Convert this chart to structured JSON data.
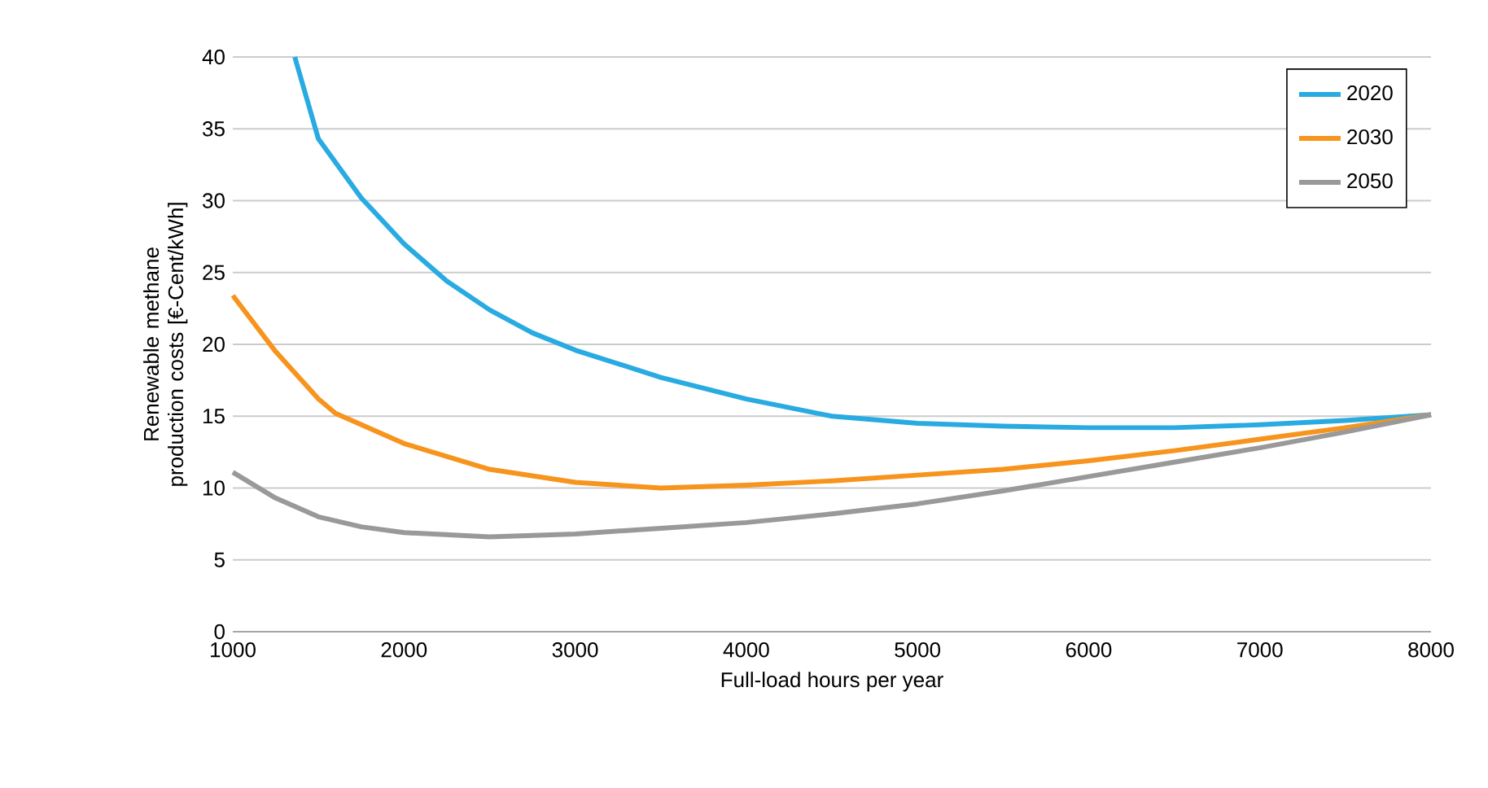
{
  "chart_data": {
    "type": "line",
    "xlabel": "Full-load hours per year",
    "ylabel": "Renewable methane production costs [€-Cent/kWh]",
    "xlim": [
      1000,
      8000
    ],
    "xticks": [
      1000,
      2000,
      3000,
      4000,
      5000,
      6000,
      7000,
      8000
    ],
    "ylim": [
      0,
      40
    ],
    "yticks": [
      0,
      5,
      10,
      15,
      20,
      25,
      30,
      35,
      40
    ],
    "grid": "y",
    "legend": "top right",
    "marker": "none",
    "line_style": "solid",
    "series": [
      {
        "name": "2020",
        "color": "#29abe2",
        "x": [
          1362,
          1500,
          1750,
          2000,
          2250,
          2500,
          2750,
          3000,
          3500,
          4000,
          4500,
          5000,
          5500,
          6000,
          6500,
          7000,
          7500,
          8000
        ],
        "values": [
          40,
          34.3,
          30.2,
          27,
          24.4,
          22.4,
          20.8,
          19.6,
          17.7,
          16.2,
          15.0,
          14.5,
          14.3,
          14.2,
          14.2,
          14.4,
          14.7,
          15.1
        ]
      },
      {
        "name": "2030",
        "color": "#f7941d",
        "x": [
          1000,
          1250,
          1500,
          1600,
          2000,
          2500,
          3000,
          3500,
          4000,
          4500,
          5000,
          5500,
          6000,
          6500,
          7000,
          7500,
          8000
        ],
        "values": [
          23.4,
          19.5,
          16.2,
          15.2,
          13.1,
          11.3,
          10.4,
          10.0,
          10.2,
          10.5,
          10.9,
          11.3,
          11.9,
          12.6,
          13.4,
          14.2,
          15.1
        ]
      },
      {
        "name": "2050",
        "color": "#999999",
        "x": [
          1000,
          1250,
          1500,
          1750,
          2000,
          2500,
          3000,
          3500,
          4000,
          4500,
          5000,
          5500,
          6000,
          6500,
          7000,
          7500,
          8000
        ],
        "values": [
          11.1,
          9.3,
          8.0,
          7.3,
          6.9,
          6.6,
          6.8,
          7.2,
          7.6,
          8.2,
          8.9,
          9.8,
          10.8,
          11.8,
          12.8,
          13.9,
          15.1
        ]
      }
    ]
  }
}
